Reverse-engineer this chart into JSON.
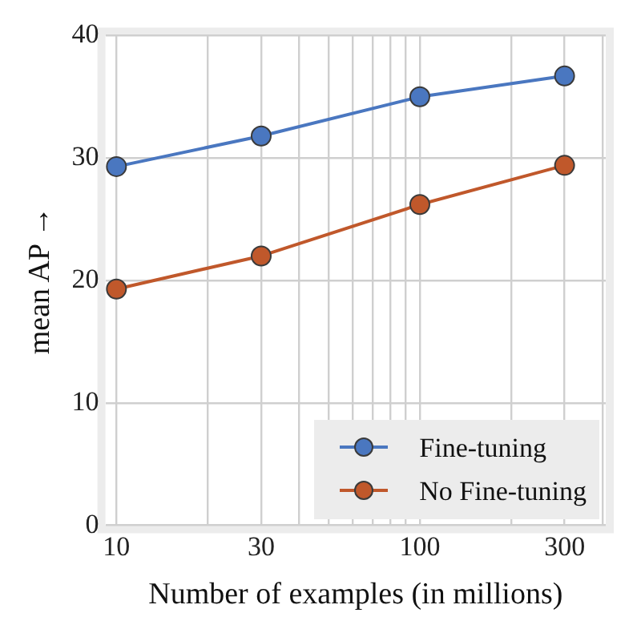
{
  "chart_data": {
    "type": "line",
    "xlabel": "Number of examples (in millions)",
    "ylabel": "mean AP →",
    "x": [
      10,
      30,
      100,
      300
    ],
    "series": [
      {
        "name": "Fine-tuning",
        "color": "#4a77c0",
        "values": [
          29.3,
          31.8,
          35.0,
          36.7
        ]
      },
      {
        "name": "No Fine-tuning",
        "color": "#c0582b",
        "values": [
          19.3,
          22.0,
          26.2,
          29.4
        ]
      }
    ],
    "log": "x",
    "xlim": [
      9.2,
      410
    ],
    "ylim": [
      0,
      40
    ],
    "yticks": [
      0,
      10,
      20,
      30,
      40
    ],
    "xticks": [
      10,
      {
        "value": 20,
        "label": null
      },
      30,
      {
        "value": 40,
        "label": null
      },
      {
        "value": 50,
        "label": null
      },
      {
        "value": 60,
        "label": null
      },
      {
        "value": 70,
        "label": null
      },
      {
        "value": 80,
        "label": null
      },
      {
        "value": 90,
        "label": null
      },
      100,
      {
        "value": 200,
        "label": null
      },
      300,
      {
        "value": 400,
        "label": null
      }
    ],
    "grid": true,
    "legend": "bottom right",
    "marker": "circle",
    "line_style": "solid"
  }
}
